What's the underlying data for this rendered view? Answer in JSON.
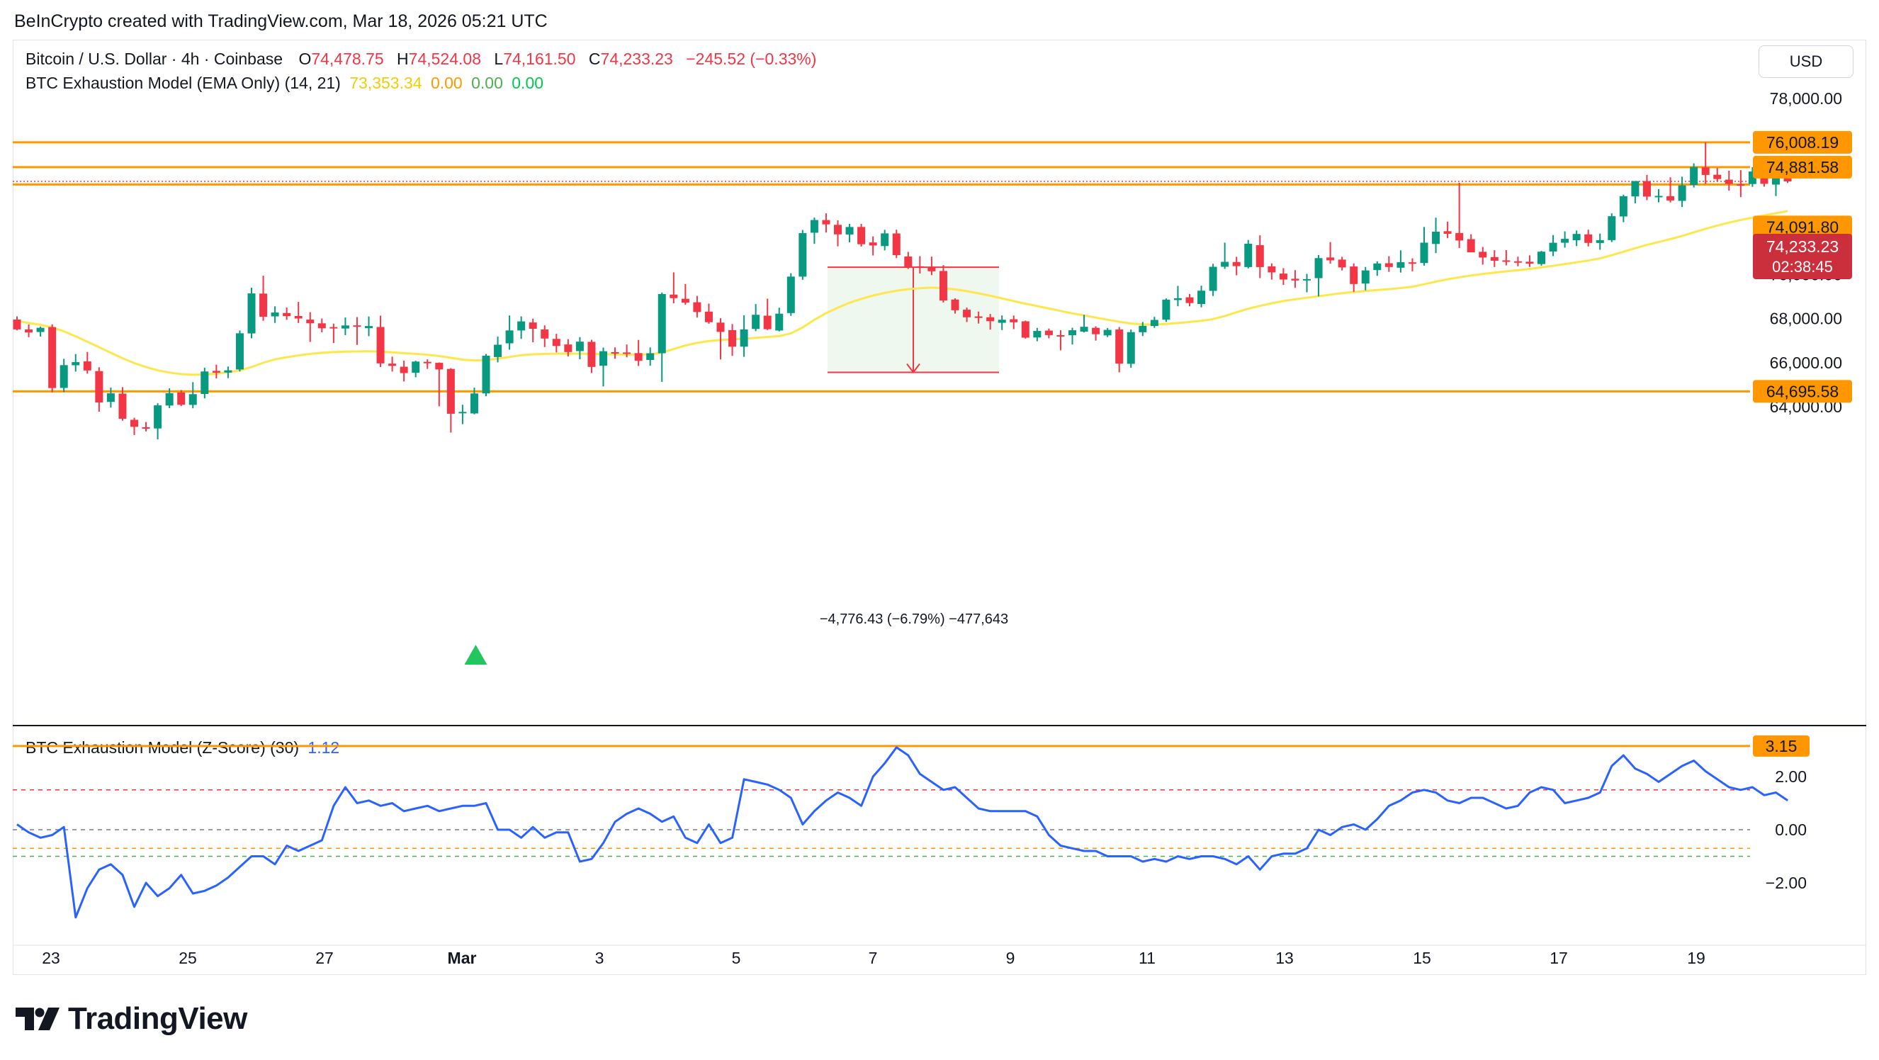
{
  "caption": "BeInCrypto created with TradingView.com, Mar 18, 2026 05:21 UTC",
  "legend": {
    "symbol": "Bitcoin / U.S. Dollar · 4h · Coinbase",
    "o_label": "O",
    "o": "74,478.75",
    "h_label": "H",
    "h": "74,524.08",
    "l_label": "L",
    "l": "74,161.50",
    "c_label": "C",
    "c": "74,233.23",
    "change": "−245.52 (−0.33%)",
    "ema_title": "BTC Exhaustion Model (EMA Only) (14, 21)",
    "ema_values": [
      "73,353.34",
      "0.00",
      "0.00",
      "0.00"
    ],
    "z_title": "BTC Exhaustion Model (Z-Score) (30)",
    "z_value": "1.12"
  },
  "currency_button": "USD",
  "brand": "TradingView",
  "colors": {
    "up": "#089981",
    "down": "#f23645",
    "ema": "#fde74c",
    "level": "#ff9800",
    "zscore": "#2962ff",
    "measure_fill": "#e8f5e9",
    "measure_line": "#f23645"
  },
  "price_axis": {
    "ticks": [
      "78,000.00",
      "72,000.00",
      "70,000.00",
      "68,000.00",
      "66,000.00",
      "64,000.00"
    ]
  },
  "z_axis": {
    "ticks": [
      "2.00",
      "0.00",
      "−2.00"
    ]
  },
  "time_axis": {
    "ticks": [
      "23",
      "25",
      "27",
      "Mar",
      "3",
      "5",
      "7",
      "9",
      "11",
      "13",
      "15",
      "17",
      "19"
    ]
  },
  "level_labels": [
    "76,008.19",
    "74,881.58",
    "74,091.80",
    "64,695.58"
  ],
  "current_price": {
    "price": "74,233.23",
    "countdown": "02:38:45"
  },
  "measure_label": "−4,776.43 (−6.79%) −477,643",
  "z_level_label": "3.15",
  "chart_data": {
    "type": "candlestick",
    "interval": "4h",
    "ylim": [
      62500,
      79200
    ],
    "z_ylim": [
      -3.3,
      3.6
    ],
    "levels": [
      76008.19,
      74881.58,
      74091.8,
      64695.58
    ],
    "z_lines": [
      3.15,
      1.5,
      0,
      -0.7,
      -1.0
    ],
    "candles": [
      [
        67958,
        68102,
        67469,
        67513
      ],
      [
        67509,
        67736,
        67158,
        67371
      ],
      [
        67394,
        67640,
        67187,
        67584
      ],
      [
        67618,
        67741,
        64654,
        64847
      ],
      [
        64854,
        66174,
        64661,
        65888
      ],
      [
        65883,
        66392,
        65594,
        66025
      ],
      [
        66057,
        66489,
        65503,
        65647
      ],
      [
        65618,
        65791,
        63773,
        64191
      ],
      [
        64218,
        64868,
        63962,
        64608
      ],
      [
        64595,
        64888,
        63363,
        63455
      ],
      [
        63406,
        63498,
        62717,
        63088
      ],
      [
        63067,
        63305,
        62878,
        63052
      ],
      [
        63013,
        64156,
        62516,
        64062
      ],
      [
        64054,
        64835,
        63935,
        64612
      ],
      [
        64647,
        64757,
        64026,
        64089
      ],
      [
        64083,
        65114,
        63929,
        64570
      ],
      [
        64579,
        65775,
        64380,
        65601
      ],
      [
        65628,
        65908,
        65284,
        65547
      ],
      [
        65551,
        65828,
        65299,
        65653
      ],
      [
        65692,
        67463,
        65601,
        67335
      ],
      [
        67328,
        69407,
        67107,
        69146
      ],
      [
        69138,
        69951,
        67903,
        68089
      ],
      [
        68104,
        68561,
        67806,
        68278
      ],
      [
        68256,
        68507,
        67945,
        68113
      ],
      [
        68120,
        68760,
        67802,
        68006
      ],
      [
        67956,
        68293,
        66943,
        67791
      ],
      [
        67788,
        68009,
        67381,
        67564
      ],
      [
        67617,
        67775,
        66893,
        67580
      ],
      [
        67551,
        68050,
        67253,
        67691
      ],
      [
        67695,
        68071,
        66807,
        67632
      ],
      [
        67566,
        68099,
        67205,
        67664
      ],
      [
        67622,
        68135,
        65801,
        65968
      ],
      [
        65958,
        66272,
        65596,
        65852
      ],
      [
        65817,
        66093,
        65146,
        65528
      ],
      [
        65541,
        66088,
        65339,
        66050
      ],
      [
        66037,
        66153,
        65719,
        65975
      ],
      [
        65993,
        66011,
        64017,
        65694
      ],
      [
        65714,
        65754,
        62824,
        63680
      ],
      [
        63758,
        64089,
        63209,
        63764
      ],
      [
        63695,
        64866,
        63656,
        64603
      ],
      [
        64605,
        66397,
        64474,
        66315
      ],
      [
        66256,
        67182,
        66015,
        66816
      ],
      [
        66880,
        68145,
        66591,
        67465
      ],
      [
        67464,
        68103,
        67081,
        67874
      ],
      [
        67825,
        68000,
        66929,
        67540
      ],
      [
        67509,
        67696,
        66710,
        67097
      ],
      [
        67081,
        67309,
        66470,
        66758
      ],
      [
        66827,
        67070,
        66282,
        66484
      ],
      [
        66526,
        67161,
        66154,
        66956
      ],
      [
        66947,
        67040,
        65532,
        65808
      ],
      [
        65861,
        66684,
        64922,
        66521
      ],
      [
        66480,
        66695,
        66179,
        66446
      ],
      [
        66464,
        66826,
        66244,
        66427
      ],
      [
        66435,
        67034,
        65852,
        66086
      ],
      [
        66124,
        66693,
        65860,
        66429
      ],
      [
        66428,
        69185,
        65130,
        69118
      ],
      [
        69094,
        70102,
        68697,
        68932
      ],
      [
        68903,
        69569,
        68629,
        68728
      ],
      [
        68742,
        69034,
        68048,
        68299
      ],
      [
        68318,
        68683,
        67770,
        67840
      ],
      [
        67820,
        68018,
        66150,
        67398
      ],
      [
        67479,
        67754,
        66309,
        66728
      ],
      [
        66728,
        68154,
        66266,
        67509
      ],
      [
        67531,
        68663,
        67435,
        68176
      ],
      [
        68134,
        68906,
        67481,
        67522
      ],
      [
        67461,
        68498,
        67421,
        68226
      ],
      [
        68254,
        70063,
        68126,
        69910
      ],
      [
        69909,
        72031,
        69765,
        71884
      ],
      [
        71903,
        72590,
        71397,
        72479
      ],
      [
        72477,
        72783,
        71912,
        72283
      ],
      [
        72261,
        72464,
        71285,
        71829
      ],
      [
        71823,
        72303,
        71467,
        72163
      ],
      [
        72164,
        72306,
        71275,
        71381
      ],
      [
        71460,
        71736,
        70869,
        71323
      ],
      [
        71297,
        72035,
        71100,
        71873
      ],
      [
        71870,
        72039,
        70751,
        70885
      ],
      [
        70822,
        71032,
        70260,
        70318
      ],
      [
        70375,
        70837,
        70051,
        70326
      ],
      [
        70310,
        70815,
        69976,
        70153
      ],
      [
        70165,
        70433,
        68733,
        68822
      ],
      [
        68867,
        68923,
        68230,
        68382
      ],
      [
        68406,
        68504,
        67845,
        68062
      ],
      [
        68102,
        68322,
        67777,
        68033
      ],
      [
        68063,
        68212,
        67501,
        67884
      ],
      [
        67811,
        68145,
        67484,
        67951
      ],
      [
        67973,
        68142,
        67523,
        67836
      ],
      [
        67879,
        67911,
        67093,
        67137
      ],
      [
        67145,
        67578,
        66975,
        67441
      ],
      [
        67457,
        67551,
        67106,
        67253
      ],
      [
        67251,
        67474,
        66562,
        67187
      ],
      [
        67247,
        67587,
        66826,
        67473
      ],
      [
        67411,
        68177,
        67375,
        67631
      ],
      [
        67583,
        67652,
        67004,
        67293
      ],
      [
        67240,
        67576,
        67164,
        67490
      ],
      [
        67506,
        67622,
        65559,
        65957
      ],
      [
        65948,
        67507,
        65769,
        67388
      ],
      [
        67383,
        67850,
        67209,
        67675
      ],
      [
        67665,
        68085,
        67582,
        67942
      ],
      [
        67953,
        68919,
        67853,
        68864
      ],
      [
        68845,
        69488,
        68563,
        68927
      ],
      [
        68969,
        69119,
        68562,
        68708
      ],
      [
        68665,
        69498,
        68515,
        69270
      ],
      [
        69262,
        70492,
        69028,
        70355
      ],
      [
        70357,
        71452,
        70260,
        70580
      ],
      [
        70573,
        70808,
        69971,
        70384
      ],
      [
        70344,
        71573,
        70279,
        71402
      ],
      [
        71336,
        71784,
        69842,
        70343
      ],
      [
        70376,
        70513,
        69773,
        70100
      ],
      [
        70048,
        70295,
        69534,
        69777
      ],
      [
        69813,
        70205,
        69399,
        69734
      ],
      [
        69735,
        70035,
        69197,
        69798
      ],
      [
        69840,
        70891,
        69010,
        70750
      ],
      [
        70779,
        71478,
        70501,
        70648
      ],
      [
        70682,
        70809,
        70188,
        70327
      ],
      [
        70369,
        70510,
        69219,
        69574
      ],
      [
        69593,
        70347,
        69284,
        70190
      ],
      [
        70206,
        70602,
        69946,
        70506
      ],
      [
        70517,
        70836,
        70126,
        70345
      ],
      [
        70313,
        71103,
        70093,
        70563
      ],
      [
        70558,
        70738,
        70151,
        70492
      ],
      [
        70527,
        72163,
        70408,
        71452
      ],
      [
        71392,
        72587,
        70978,
        71951
      ],
      [
        71971,
        72409,
        71654,
        71855
      ],
      [
        71889,
        74170,
        71207,
        71550
      ],
      [
        71612,
        71833,
        71030,
        71012
      ],
      [
        71037,
        71257,
        70453,
        70777
      ],
      [
        70796,
        71109,
        70345,
        70629
      ],
      [
        70647,
        71114,
        70418,
        70605
      ],
      [
        70605,
        70815,
        70377,
        70575
      ],
      [
        70586,
        70875,
        70349,
        70497
      ],
      [
        70480,
        71077,
        70406,
        71042
      ],
      [
        71052,
        71798,
        70843,
        71447
      ],
      [
        71448,
        71964,
        71223,
        71625
      ],
      [
        71562,
        72004,
        71298,
        71848
      ],
      [
        71827,
        72039,
        71280,
        71440
      ],
      [
        71438,
        71864,
        71130,
        71566
      ],
      [
        71567,
        72782,
        71477,
        72653
      ],
      [
        72642,
        73631,
        72379,
        73562
      ],
      [
        73552,
        74250,
        73239,
        74250
      ],
      [
        74250,
        74528,
        73381,
        73544
      ],
      [
        73516,
        73883,
        73282,
        73577
      ],
      [
        73562,
        74420,
        73276,
        73369
      ],
      [
        73349,
        74448,
        73070,
        74055
      ],
      [
        74074,
        75053,
        73958,
        74889
      ],
      [
        74873,
        76008,
        74125,
        74528
      ],
      [
        74535,
        74850,
        74215,
        74341
      ],
      [
        74314,
        74720,
        73812,
        74121
      ],
      [
        74099,
        74745,
        73519,
        74050
      ],
      [
        74115,
        74882,
        73987,
        74682
      ],
      [
        74695,
        74835,
        73995,
        74125
      ],
      [
        74089,
        74751,
        73569,
        74479
      ],
      [
        74478.75,
        74524.08,
        74161.5,
        74233.23
      ]
    ],
    "ema": [
      67900,
      67800,
      67720,
      67600,
      67420,
      67200,
      66950,
      66700,
      66450,
      66200,
      65980,
      65800,
      65650,
      65550,
      65480,
      65450,
      65460,
      65500,
      65560,
      65650,
      65800,
      66000,
      66150,
      66250,
      66330,
      66400,
      66450,
      66480,
      66500,
      66510,
      66520,
      66500,
      66470,
      66430,
      66400,
      66360,
      66300,
      66220,
      66140,
      66100,
      66120,
      66180,
      66260,
      66340,
      66380,
      66400,
      66410,
      66410,
      66410,
      66400,
      66390,
      66380,
      66370,
      66370,
      66380,
      66460,
      66620,
      66780,
      66900,
      66980,
      67030,
      67060,
      67090,
      67130,
      67170,
      67210,
      67330,
      67600,
      67950,
      68250,
      68500,
      68720,
      68900,
      69050,
      69170,
      69270,
      69340,
      69380,
      69410,
      69380,
      69330,
      69250,
      69150,
      69040,
      68920,
      68800,
      68680,
      68570,
      68460,
      68350,
      68240,
      68150,
      68050,
      67950,
      67860,
      67780,
      67740,
      67730,
      67760,
      67800,
      67850,
      67900,
      67980,
      68120,
      68290,
      68450,
      68580,
      68700,
      68800,
      68880,
      68950,
      69020,
      69090,
      69160,
      69210,
      69260,
      69300,
      69340,
      69390,
      69450,
      69560,
      69680,
      69790,
      69880,
      69960,
      70030,
      70090,
      70150,
      70200,
      70260,
      70330,
      70400,
      70480,
      70560,
      70640,
      70740,
      70880,
      71040,
      71200,
      71350,
      71480,
      71610,
      71760,
      71920,
      72080,
      72230,
      72360,
      72480,
      72590,
      72690,
      72790,
      72890
    ],
    "z_series": [
      0.2,
      -0.1,
      -0.3,
      -0.2,
      0.1,
      -3.3,
      -2.2,
      -1.5,
      -1.3,
      -1.7,
      -2.9,
      -2.0,
      -2.5,
      -2.2,
      -1.7,
      -2.4,
      -2.3,
      -2.1,
      -1.8,
      -1.4,
      -1.0,
      -1.0,
      -1.3,
      -0.6,
      -0.8,
      -0.6,
      -0.4,
      0.9,
      1.6,
      1.0,
      1.1,
      0.9,
      1.0,
      0.7,
      0.8,
      0.9,
      0.7,
      0.8,
      0.9,
      0.9,
      1.0,
      0.0,
      0.0,
      -0.3,
      0.1,
      -0.3,
      -0.1,
      -0.1,
      -1.2,
      -1.1,
      -0.5,
      0.3,
      0.6,
      0.8,
      0.6,
      0.3,
      0.5,
      -0.3,
      -0.5,
      0.2,
      -0.5,
      -0.3,
      1.9,
      1.8,
      1.7,
      1.5,
      1.2,
      0.2,
      0.7,
      1.1,
      1.4,
      1.2,
      0.9,
      2.0,
      2.5,
      3.1,
      2.8,
      2.1,
      1.8,
      1.5,
      1.6,
      1.2,
      0.8,
      0.7,
      0.7,
      0.7,
      0.7,
      0.5,
      -0.2,
      -0.6,
      -0.7,
      -0.8,
      -0.8,
      -1.0,
      -1.0,
      -1.0,
      -1.2,
      -1.1,
      -1.2,
      -1.0,
      -1.1,
      -1.0,
      -1.0,
      -1.1,
      -1.3,
      -1.0,
      -1.5,
      -1.0,
      -0.9,
      -0.9,
      -0.7,
      0.0,
      -0.2,
      0.1,
      0.2,
      0.0,
      0.4,
      0.9,
      1.1,
      1.4,
      1.5,
      1.4,
      1.1,
      1.0,
      1.2,
      1.2,
      1.0,
      0.8,
      0.9,
      1.4,
      1.6,
      1.5,
      1.0,
      1.1,
      1.2,
      1.4,
      1.6,
      1.5,
      1.6,
      1.8,
      1.5,
      1.0,
      0.8,
      1.1,
      0.7,
      0.5,
      0.4,
      0.3,
      0.4,
      1.1
    ],
    "z_tail": [
      2.4,
      2.8,
      2.3,
      2.1,
      1.8,
      2.1,
      2.4,
      2.6,
      2.2,
      1.9,
      1.6,
      1.5,
      1.6,
      1.3,
      1.4,
      1.1
    ],
    "markers": [
      {
        "type": "buy-triangle",
        "at_candle": 39,
        "color": "#22c55e"
      }
    ],
    "measure": {
      "from_candle": 77,
      "to_candle": 95,
      "top": 70338,
      "bottom": 65561
    }
  }
}
